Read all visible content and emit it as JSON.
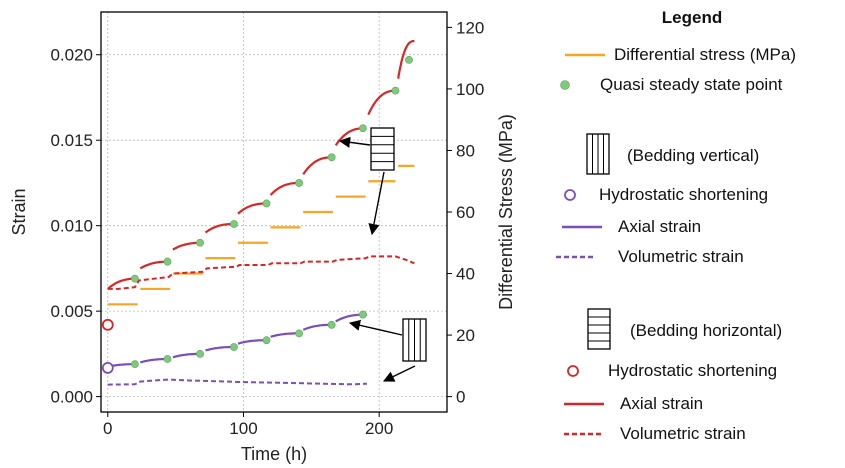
{
  "chart_data": {
    "type": "line",
    "xlabel": "Time (h)",
    "ylabel": "Strain",
    "y2label": "Differential Stress (MPa)",
    "xlim": [
      -5,
      250
    ],
    "ylim": [
      -0.0009,
      0.0225
    ],
    "y2lim": [
      -5.0,
      125.0
    ],
    "xticks": [
      "0",
      "100",
      "200"
    ],
    "xtick_values": [
      0,
      100,
      200
    ],
    "yticks": [
      "0.000",
      "0.005",
      "0.010",
      "0.015",
      "0.020"
    ],
    "ytick_values": [
      0.0,
      0.005,
      0.01,
      0.015,
      0.02
    ],
    "y2ticks": [
      "0",
      "20",
      "40",
      "60",
      "80",
      "100",
      "120"
    ],
    "y2tick_values": [
      0,
      20,
      40,
      60,
      80,
      100,
      120
    ],
    "grid": true,
    "colors": {
      "stress": "#f5a623",
      "steady": "#7dc97d",
      "vertical": "#7a4fb8",
      "horizontal": "#d62728"
    },
    "series": [
      {
        "name": "Differential stress (MPa)",
        "axis": "right",
        "style": "segments",
        "segments": [
          [
            0,
            22,
            30
          ],
          [
            24,
            46,
            35
          ],
          [
            48,
            70,
            40
          ],
          [
            72,
            94,
            45
          ],
          [
            96,
            118,
            50
          ],
          [
            120,
            142,
            55
          ],
          [
            144,
            166,
            60
          ],
          [
            168,
            190,
            65
          ],
          [
            192,
            212,
            70
          ],
          [
            214,
            226,
            75
          ]
        ]
      },
      {
        "name": "Quasi steady state point",
        "axis": "left",
        "style": "points",
        "x": [
          20,
          44,
          68,
          93,
          117,
          141,
          165,
          188,
          212,
          222
        ],
        "y": [
          0.0069,
          0.0079,
          0.009,
          0.0101,
          0.0113,
          0.0125,
          0.014,
          0.0157,
          0.0179,
          0.0197
        ]
      },
      {
        "name": "Quasi steady state point (bedding vertical)",
        "axis": "left",
        "style": "points",
        "x": [
          20,
          44,
          68,
          93,
          117,
          141,
          165,
          188
        ],
        "y": [
          0.0019,
          0.0022,
          0.0025,
          0.0029,
          0.0033,
          0.0037,
          0.0042,
          0.0048
        ]
      },
      {
        "name": "Hydrostatic shortening (vertical)",
        "axis": "left",
        "style": "open-circle",
        "x": [
          0
        ],
        "y": [
          0.00168
        ]
      },
      {
        "name": "Hydrostatic shortening (horizontal)",
        "axis": "left",
        "style": "open-circle",
        "x": [
          0
        ],
        "y": [
          0.0042
        ]
      },
      {
        "name": "Axial strain (vertical)",
        "axis": "left",
        "style": "creep",
        "stages": [
          [
            0,
            22,
            0.00175,
            0.0019
          ],
          [
            24,
            46,
            0.002,
            0.0022
          ],
          [
            48,
            70,
            0.0023,
            0.0025
          ],
          [
            72,
            94,
            0.0027,
            0.0029
          ],
          [
            96,
            118,
            0.0031,
            0.0033
          ],
          [
            120,
            142,
            0.0035,
            0.0037
          ],
          [
            144,
            166,
            0.0039,
            0.0042
          ],
          [
            168,
            191,
            0.0044,
            0.0048
          ]
        ]
      },
      {
        "name": "Volumetric strain (vertical)",
        "axis": "left",
        "style": "dashed",
        "x": [
          0,
          20,
          24,
          35,
          46,
          50,
          60,
          80,
          100,
          120,
          140,
          160,
          180,
          191
        ],
        "y": [
          0.0007,
          0.00072,
          0.00088,
          0.00095,
          0.001,
          0.00098,
          0.00094,
          0.0009,
          0.00085,
          0.00082,
          0.00079,
          0.00075,
          0.00072,
          0.00075
        ]
      },
      {
        "name": "Axial strain (horizontal)",
        "axis": "left",
        "style": "creep",
        "stages": [
          [
            0,
            22,
            0.0063,
            0.0069
          ],
          [
            24,
            46,
            0.0075,
            0.0079
          ],
          [
            48,
            70,
            0.0086,
            0.009
          ],
          [
            72,
            94,
            0.0096,
            0.0101
          ],
          [
            96,
            118,
            0.0107,
            0.0113
          ],
          [
            120,
            142,
            0.0118,
            0.0125
          ],
          [
            144,
            166,
            0.013,
            0.014
          ],
          [
            168,
            190,
            0.0147,
            0.0157
          ],
          [
            192,
            213,
            0.0165,
            0.0179
          ],
          [
            214,
            226,
            0.0186,
            0.0208
          ]
        ]
      },
      {
        "name": "Volumetric strain (horizontal)",
        "axis": "left",
        "style": "dashed",
        "x": [
          0,
          8,
          20,
          23,
          45,
          48,
          70,
          73,
          95,
          97,
          118,
          121,
          142,
          145,
          166,
          169,
          190,
          193,
          212,
          216,
          220,
          226
        ],
        "y": [
          0.0063,
          0.0063,
          0.0064,
          0.0068,
          0.007,
          0.0072,
          0.0073,
          0.0075,
          0.0076,
          0.0077,
          0.0077,
          0.0078,
          0.0078,
          0.0079,
          0.0079,
          0.008,
          0.0081,
          0.0082,
          0.0082,
          0.0081,
          0.008,
          0.0078
        ]
      }
    ],
    "legend": {
      "title": "Legend",
      "placement": "right",
      "entries": [
        {
          "label": "Differential stress (MPa)",
          "kind": "line",
          "key": "stress"
        },
        {
          "label": "Quasi steady state point",
          "kind": "dot",
          "key": "steady"
        },
        {
          "label": "(Bedding vertical)",
          "kind": "bedding-vertical"
        },
        {
          "label": "Hydrostatic shortening",
          "kind": "open-circle",
          "key": "vertical"
        },
        {
          "label": "Axial strain",
          "kind": "line",
          "key": "vertical"
        },
        {
          "label": "Volumetric strain",
          "kind": "dashed",
          "key": "vertical"
        },
        {
          "label": "(Bedding horizontal)",
          "kind": "bedding-horizontal"
        },
        {
          "label": "Hydrostatic shortening",
          "kind": "open-circle",
          "key": "horizontal"
        },
        {
          "label": "Axial strain",
          "kind": "line",
          "key": "horizontal"
        },
        {
          "label": "Volumetric strain",
          "kind": "dashed",
          "key": "horizontal"
        }
      ]
    }
  }
}
